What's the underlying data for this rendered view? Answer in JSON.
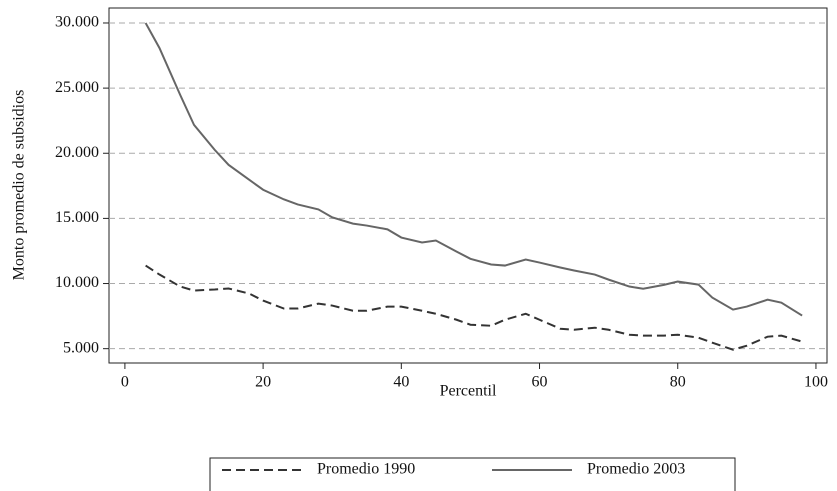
{
  "chart_data": {
    "type": "line",
    "y_label": "Monto promedio de subsidios",
    "x_label": "Percentil",
    "x": [
      3,
      5,
      8,
      10,
      13,
      15,
      18,
      20,
      23,
      25,
      28,
      30,
      33,
      35,
      38,
      40,
      43,
      45,
      48,
      50,
      53,
      55,
      58,
      60,
      63,
      65,
      68,
      70,
      73,
      75,
      78,
      80,
      83,
      85,
      88,
      90,
      93,
      95,
      98
    ],
    "series": [
      {
        "name": "Promedio 1990",
        "color": "#333333",
        "dashed": true,
        "values": [
          11380,
          10690,
          9770,
          9460,
          9540,
          9620,
          9230,
          8690,
          8080,
          8080,
          8460,
          8310,
          7910,
          7910,
          8230,
          8230,
          7910,
          7680,
          7220,
          6840,
          6760,
          7220,
          7680,
          7220,
          6530,
          6450,
          6610,
          6450,
          6070,
          6000,
          6000,
          6070,
          5840,
          5460,
          4920,
          5230,
          5920,
          6000,
          5540
        ]
      },
      {
        "name": "Promedio 2003",
        "color": "#666666",
        "dashed": false,
        "values": [
          30000,
          28080,
          24480,
          22180,
          20260,
          19110,
          17960,
          17200,
          16460,
          16070,
          15690,
          15080,
          14600,
          14450,
          14160,
          13530,
          13150,
          13300,
          12450,
          11900,
          11460,
          11380,
          11840,
          11610,
          11230,
          11000,
          10690,
          10300,
          9770,
          9600,
          9900,
          10150,
          9920,
          8920,
          8000,
          8230,
          8760,
          8530,
          7540
        ]
      }
    ],
    "xlim": [
      -2.3,
      101.6
    ],
    "ylim": [
      3900,
      31150
    ],
    "xticks": [
      0,
      20,
      40,
      60,
      80,
      100
    ],
    "yticks": [
      {
        "value": 5000,
        "label": "5.000"
      },
      {
        "value": 10000,
        "label": "10.000"
      },
      {
        "value": 15000,
        "label": "15.000"
      },
      {
        "value": 20000,
        "label": "20.000"
      },
      {
        "value": 25000,
        "label": "25.000"
      },
      {
        "value": 30000,
        "label": "30.000"
      }
    ],
    "grid": true,
    "legend": "bottom"
  }
}
